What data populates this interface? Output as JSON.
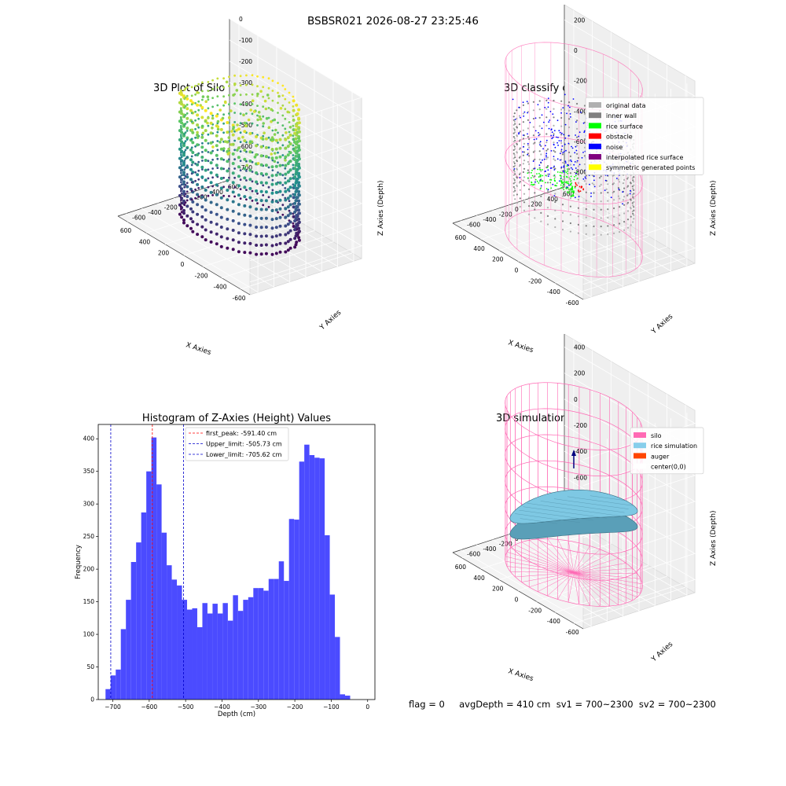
{
  "suptitle": "BSBSR021 2026-08-27 23:25:46",
  "status_line": "flag = 0     avgDepth = 410 cm  sv1 = 700~2300  sv2 = 700~2300",
  "colors": {
    "hist_bar": "#4b4bff",
    "first_peak_line": "#ff0000",
    "limit_line": "#0000cc",
    "silo_wire": "#ff69b4",
    "rice_fill": "#7ec8e3",
    "rice_edge": "#3a6e82",
    "pane": "#ebebeb"
  },
  "chart_data": [
    {
      "type": "scatter3d",
      "title": "3D Plot of Silo Interior(row data)",
      "xlabel": "X Axies",
      "ylabel": "Y Axies",
      "zlabel": "Z Axies (Depth)",
      "x_ticks": [
        "-600",
        "-400",
        "-200",
        "0",
        "200",
        "400",
        "600"
      ],
      "y_ticks": [
        "-600",
        "-400",
        "-200",
        "0",
        "200",
        "400",
        "600"
      ],
      "z_ticks": [
        "0",
        "-100",
        "-200",
        "-300",
        "-400",
        "-500",
        "-600",
        "-700"
      ],
      "xlim": [
        -700,
        700
      ],
      "ylim": [
        -700,
        700
      ],
      "zlim": [
        -760,
        0
      ],
      "colormap": "viridis"
    },
    {
      "type": "scatter3d",
      "title": "3D classify of Silo Interior",
      "xlabel": "X Axies",
      "ylabel": "Y Axies",
      "zlabel": "Z Axies (Depth)",
      "x_ticks": [
        "-600",
        "-400",
        "-200",
        "0",
        "200",
        "400",
        "600"
      ],
      "y_ticks": [
        "-600",
        "-400",
        "-200",
        "0",
        "200",
        "400",
        "600"
      ],
      "z_ticks": [
        "200",
        "0",
        "-200",
        "-400",
        "-600",
        "-800"
      ],
      "xlim": [
        -700,
        700
      ],
      "ylim": [
        -700,
        700
      ],
      "zlim": [
        -900,
        300
      ],
      "legend": [
        {
          "label": "original data",
          "color": "#b0b0b0"
        },
        {
          "label": "inner wall",
          "color": "#808080"
        },
        {
          "label": "rice surface",
          "color": "#00ff00"
        },
        {
          "label": "obstacle",
          "color": "#ff0000"
        },
        {
          "label": "noise",
          "color": "#0000ff"
        },
        {
          "label": "interpolated rice surface",
          "color": "#800080"
        },
        {
          "label": "symmetric generated points",
          "color": "#ffff00"
        }
      ]
    },
    {
      "type": "bar",
      "title": "Histogram of Z-Axies (Height) Values",
      "xlabel": "Depth (cm)",
      "ylabel": "Frequency",
      "xlim": [
        -740,
        20
      ],
      "ylim": [
        0,
        422
      ],
      "x_ticks": [
        -700,
        -600,
        -500,
        -400,
        -300,
        -200,
        -100,
        0
      ],
      "y_ticks": [
        0,
        50,
        100,
        150,
        200,
        250,
        300,
        350,
        400
      ],
      "bin_start": -720,
      "bin_width": 14,
      "values": [
        16,
        37,
        46,
        108,
        153,
        211,
        241,
        287,
        350,
        402,
        330,
        256,
        206,
        184,
        175,
        153,
        138,
        140,
        111,
        148,
        132,
        147,
        132,
        148,
        121,
        160,
        136,
        153,
        157,
        171,
        171,
        167,
        185,
        185,
        212,
        182,
        277,
        276,
        365,
        391,
        375,
        371,
        370,
        252,
        161,
        96,
        8,
        6
      ],
      "vlines": [
        {
          "label": "first_peak: -591.40 cm",
          "x": -591.4,
          "color": "#ff0000"
        },
        {
          "label": "Upper_limit: -505.73 cm",
          "x": -505.73,
          "color": "#0000cc"
        },
        {
          "label": "Lower_limit: -705.62 cm",
          "x": -705.62,
          "color": "#0000cc"
        }
      ]
    },
    {
      "type": "surface3d",
      "title": "3D simulation of Silo Interior",
      "xlabel": "X Axies",
      "ylabel": "Y Axies",
      "zlabel": "Z Axies (Depth)",
      "x_ticks": [
        "-600",
        "-400",
        "-200",
        "0",
        "200",
        "400",
        "600"
      ],
      "y_ticks": [
        "-600",
        "-400",
        "-200",
        "0",
        "200",
        "400",
        "600"
      ],
      "z_ticks": [
        "400",
        "200",
        "0",
        "-200",
        "-400",
        "-600",
        "-800"
      ],
      "xlim": [
        -700,
        700
      ],
      "ylim": [
        -700,
        700
      ],
      "zlim": [
        -900,
        500
      ],
      "legend": [
        {
          "label": "silo",
          "color": "#ff69b4"
        },
        {
          "label": "rice simulation",
          "color": "#87ceeb"
        },
        {
          "label": "auger",
          "color": "#ff4500"
        },
        {
          "label": "center(0,0)",
          "color": "#ffffff"
        }
      ]
    }
  ]
}
